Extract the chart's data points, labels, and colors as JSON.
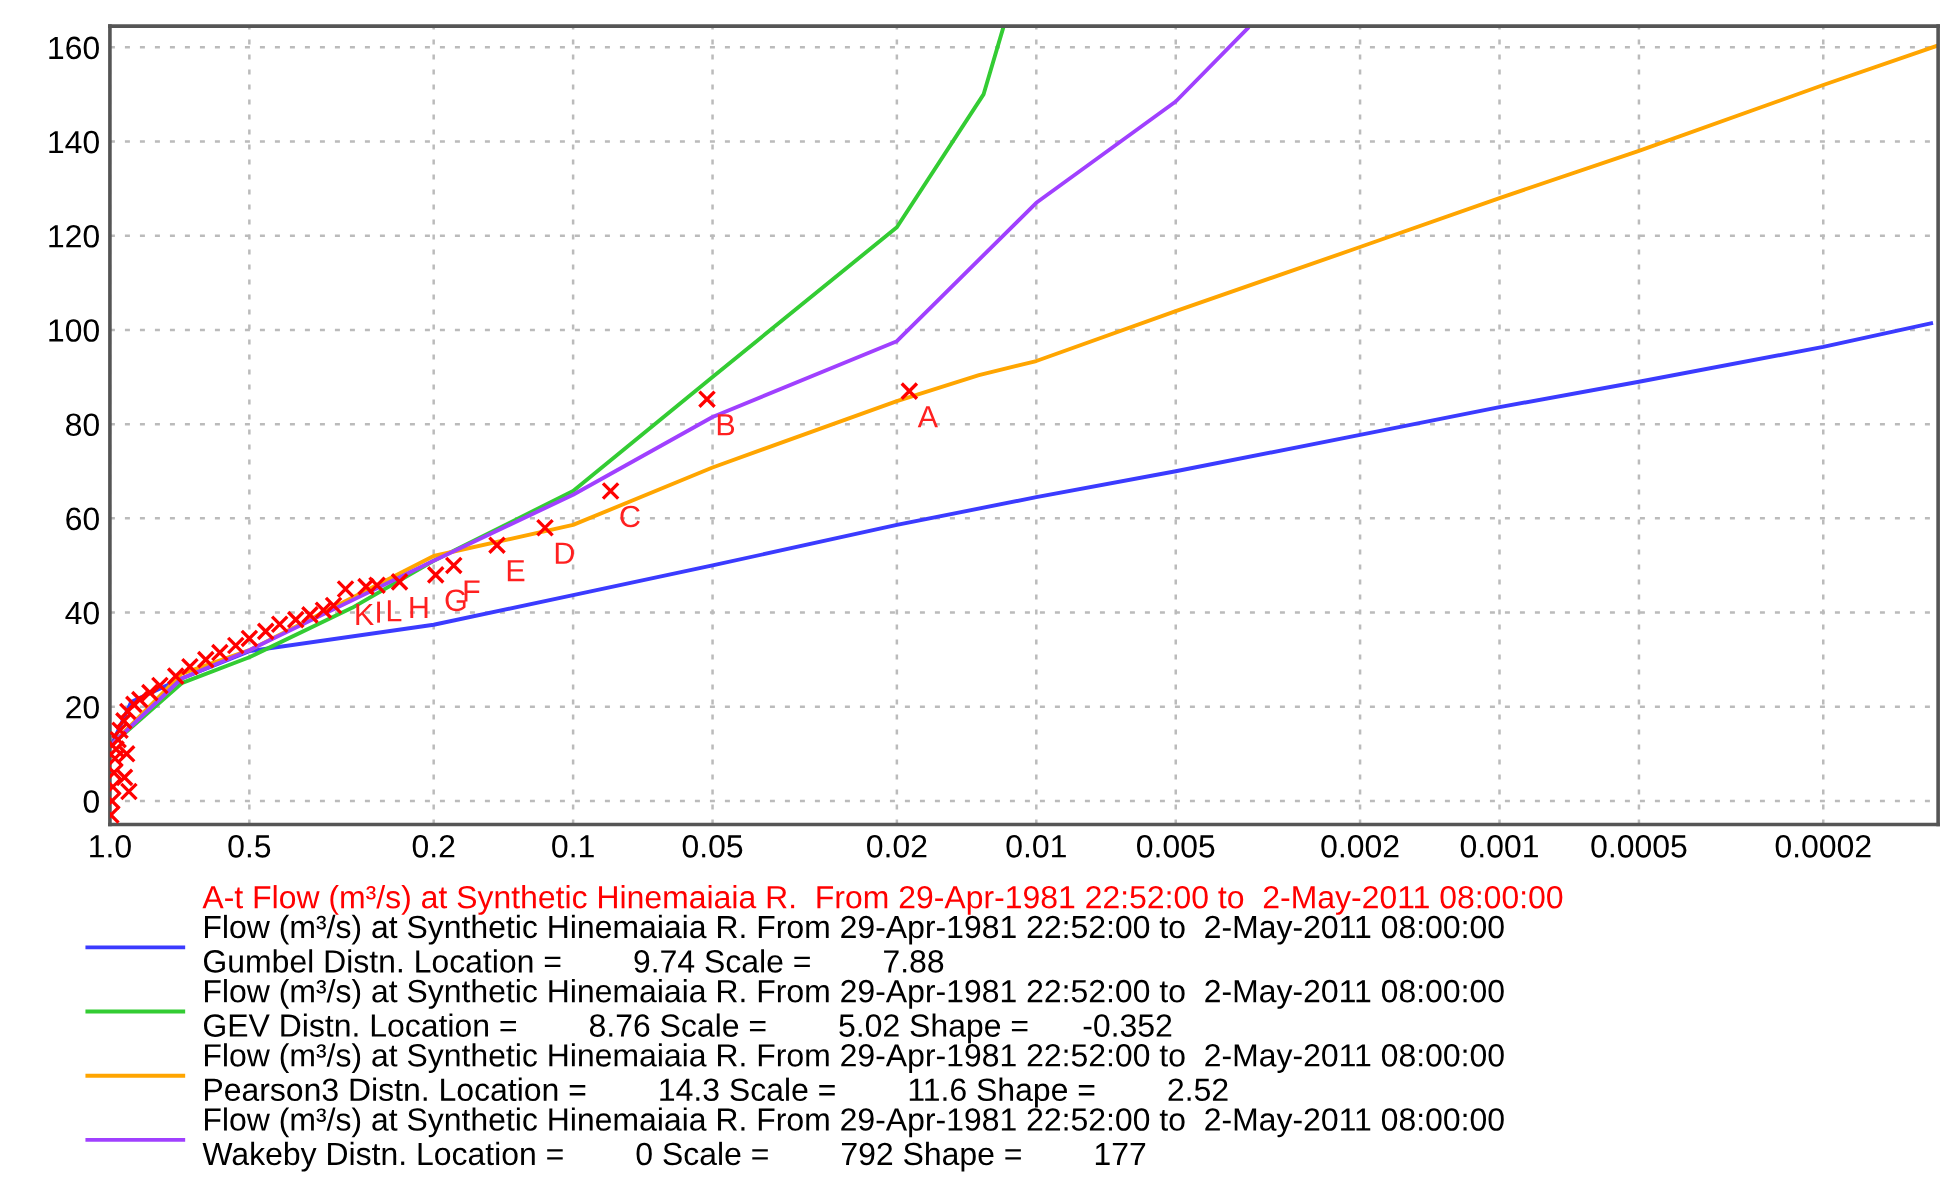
{
  "chart_data": {
    "type": "line",
    "log": "x",
    "xlim": [
      1.0,
      0.000113
    ],
    "ylim": [
      -5,
      164.5
    ],
    "xticks": [
      {
        "value": 1.0,
        "label": "1.0"
      },
      0.5,
      0.2,
      0.1,
      0.05,
      0.02,
      0.01,
      0.005,
      0.002,
      0.001,
      0.0005,
      0.0002
    ],
    "yticks": [
      0,
      20,
      40,
      60,
      80,
      100,
      120,
      140,
      160
    ],
    "grid": true,
    "legend": "bottom",
    "line_style": "solid",
    "marker": "none",
    "series": [
      {
        "name": "A-t Flow (m³/s) at Synthetic Hinemaiaia R.  From 29-Apr-1981 22:52:00 to  2-May-2011 08:00:00",
        "type": "scatter",
        "marker": "cross",
        "color": "#ff0000",
        "x": [
          0.995,
          0.99,
          0.985,
          0.98,
          0.975,
          0.97,
          0.96,
          0.951,
          0.933,
          0.915,
          0.888,
          0.862,
          0.82,
          0.78,
          0.721,
          0.672,
          0.621,
          0.579,
          0.535,
          0.5,
          0.461,
          0.43,
          0.397,
          0.37,
          0.346,
          0.329,
          0.93,
          0.92,
          0.91,
          0.0188,
          0.0514,
          0.083,
          0.115,
          0.146,
          0.181,
          0.198,
          0.237,
          0.265,
          0.28,
          0.31
        ],
        "values": [
          -3,
          0,
          3,
          6,
          9,
          11,
          13,
          15,
          17,
          19,
          20.5,
          21.5,
          23,
          24.5,
          26.5,
          28.5,
          30,
          31.5,
          33,
          34.5,
          36,
          37.5,
          38.5,
          39.5,
          40.5,
          41.5,
          5,
          10,
          2,
          87,
          85.3,
          65.8,
          58,
          54.3,
          50,
          48,
          46.5,
          45.8,
          45.5,
          45
        ]
      },
      {
        "name": "Flow (m³/s) at Synthetic Hinemaiaia R. From 29-Apr-1981 22:52:00 to  2-May-2011 08:00:00\nGumbel Distn. Location =        9.74 Scale =        7.88",
        "color": "#3b3bff",
        "x": [
          0.99,
          0.9,
          0.7,
          0.5,
          0.2,
          0.1,
          0.05,
          0.02,
          0.01,
          0.005,
          0.002,
          0.001,
          0.0005,
          0.0002,
          0.000117
        ],
        "values": [
          12,
          21,
          26,
          31.8,
          37.4,
          43.7,
          50,
          58.6,
          64.5,
          70,
          77.7,
          83.6,
          89,
          96.4,
          101.4
        ]
      },
      {
        "name": "Flow (m³/s) at Synthetic Hinemaiaia R. From 29-Apr-1981 22:52:00 to  2-May-2011 08:00:00\nGEV Distn. Location =        8.76 Scale =        5.02 Shape =      -0.352",
        "color": "#33cc33",
        "x": [
          0.99,
          0.7,
          0.5,
          0.3,
          0.2,
          0.1,
          0.05,
          0.02,
          0.013,
          0.0118
        ],
        "values": [
          12,
          25,
          30.5,
          41,
          51,
          65.8,
          90,
          121.8,
          150,
          164
        ]
      },
      {
        "name": "Flow (m³/s) at Synthetic Hinemaiaia R. From 29-Apr-1981 22:52:00 to  2-May-2011 08:00:00\nPearson3 Distn. Location =        14.3 Scale =        11.6 Shape =        2.52",
        "color": "#ffa500",
        "x": [
          0.99,
          0.7,
          0.5,
          0.2,
          0.1,
          0.05,
          0.02,
          0.0133,
          0.01,
          0.005,
          0.002,
          0.001,
          0.0005,
          0.0002,
          0.000113
        ],
        "values": [
          12,
          27,
          32,
          52,
          58.6,
          70.8,
          84.9,
          90.4,
          93.4,
          104,
          117.6,
          128,
          138,
          152,
          160.4
        ]
      },
      {
        "name": "Flow (m³/s) at Synthetic Hinemaiaia R. From 29-Apr-1981 22:52:00 to  2-May-2011 08:00:00\nWakeby Distn. Location =        0 Scale =        792 Shape =        177",
        "color": "#a040ff",
        "x": [
          0.99,
          0.7,
          0.5,
          0.2,
          0.1,
          0.05,
          0.02,
          0.01,
          0.005,
          0.0035
        ],
        "values": [
          12,
          26,
          32,
          51,
          65,
          81.5,
          97.6,
          127,
          148.5,
          164
        ]
      }
    ],
    "annotations": [
      {
        "text": "A",
        "x": 0.0188,
        "y": 87
      },
      {
        "text": "B",
        "x": 0.0514,
        "y": 85.3
      },
      {
        "text": "C",
        "x": 0.083,
        "y": 65.8
      },
      {
        "text": "D",
        "x": 0.115,
        "y": 58
      },
      {
        "text": "E",
        "x": 0.146,
        "y": 54.3
      },
      {
        "text": "F",
        "x": 0.181,
        "y": 50
      },
      {
        "text": "G",
        "x": 0.198,
        "y": 48
      },
      {
        "text": "H",
        "x": 0.237,
        "y": 46.5
      },
      {
        "text": "L",
        "x": 0.265,
        "y": 45.8
      },
      {
        "text": "I",
        "x": 0.28,
        "y": 45.5
      },
      {
        "text": "K",
        "x": 0.31,
        "y": 45
      }
    ]
  }
}
